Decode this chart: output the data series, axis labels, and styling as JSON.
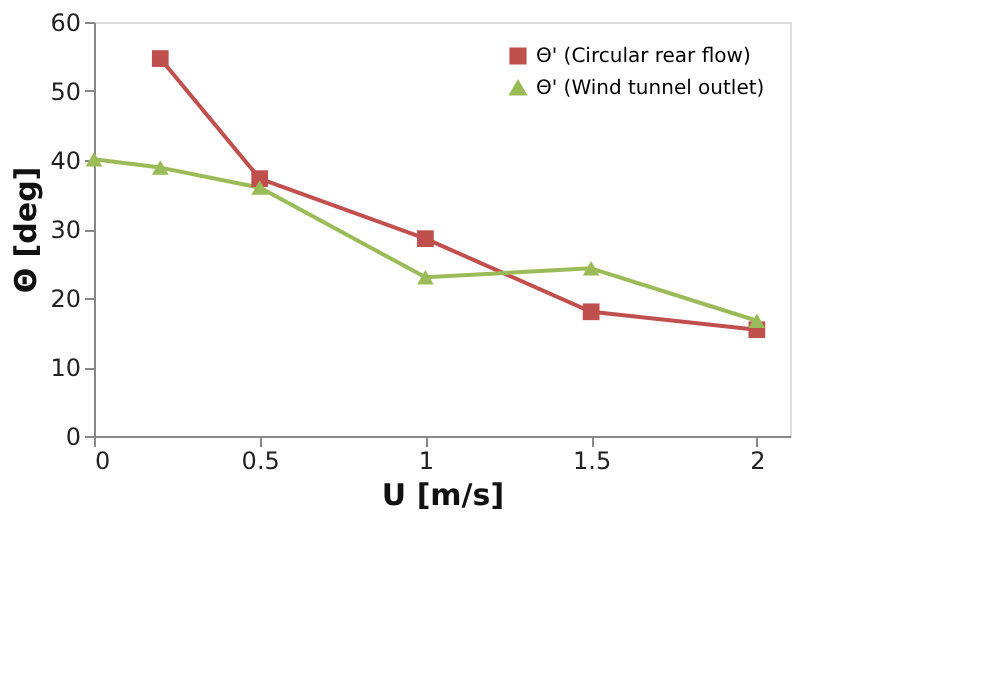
{
  "chart_data": {
    "type": "line",
    "xlabel": "U [m/s]",
    "ylabel": "Θ [deg]",
    "xlim": [
      0,
      2.1
    ],
    "xticks": [
      0,
      0.5,
      1,
      1.5,
      2
    ],
    "ylim": [
      0,
      60
    ],
    "yticks": [
      0,
      10,
      20,
      30,
      40,
      50,
      60
    ],
    "grid": false,
    "legend": "top right",
    "series": [
      {
        "name": "Θ' (Circular rear flow)",
        "color": "#c0504d",
        "marker": "square",
        "x": [
          0.2,
          0.5,
          1,
          1.5,
          2
        ],
        "values": [
          54.7,
          37.3,
          28.6,
          18.0,
          15.4
        ]
      },
      {
        "name": "Θ' (Wind tunnel outlet)",
        "color": "#9bbb59",
        "marker": "triangle",
        "x": [
          0,
          0.2,
          0.5,
          1,
          1.5,
          2
        ],
        "values": [
          40.1,
          38.9,
          36.0,
          23.0,
          24.3,
          16.7
        ]
      }
    ]
  }
}
